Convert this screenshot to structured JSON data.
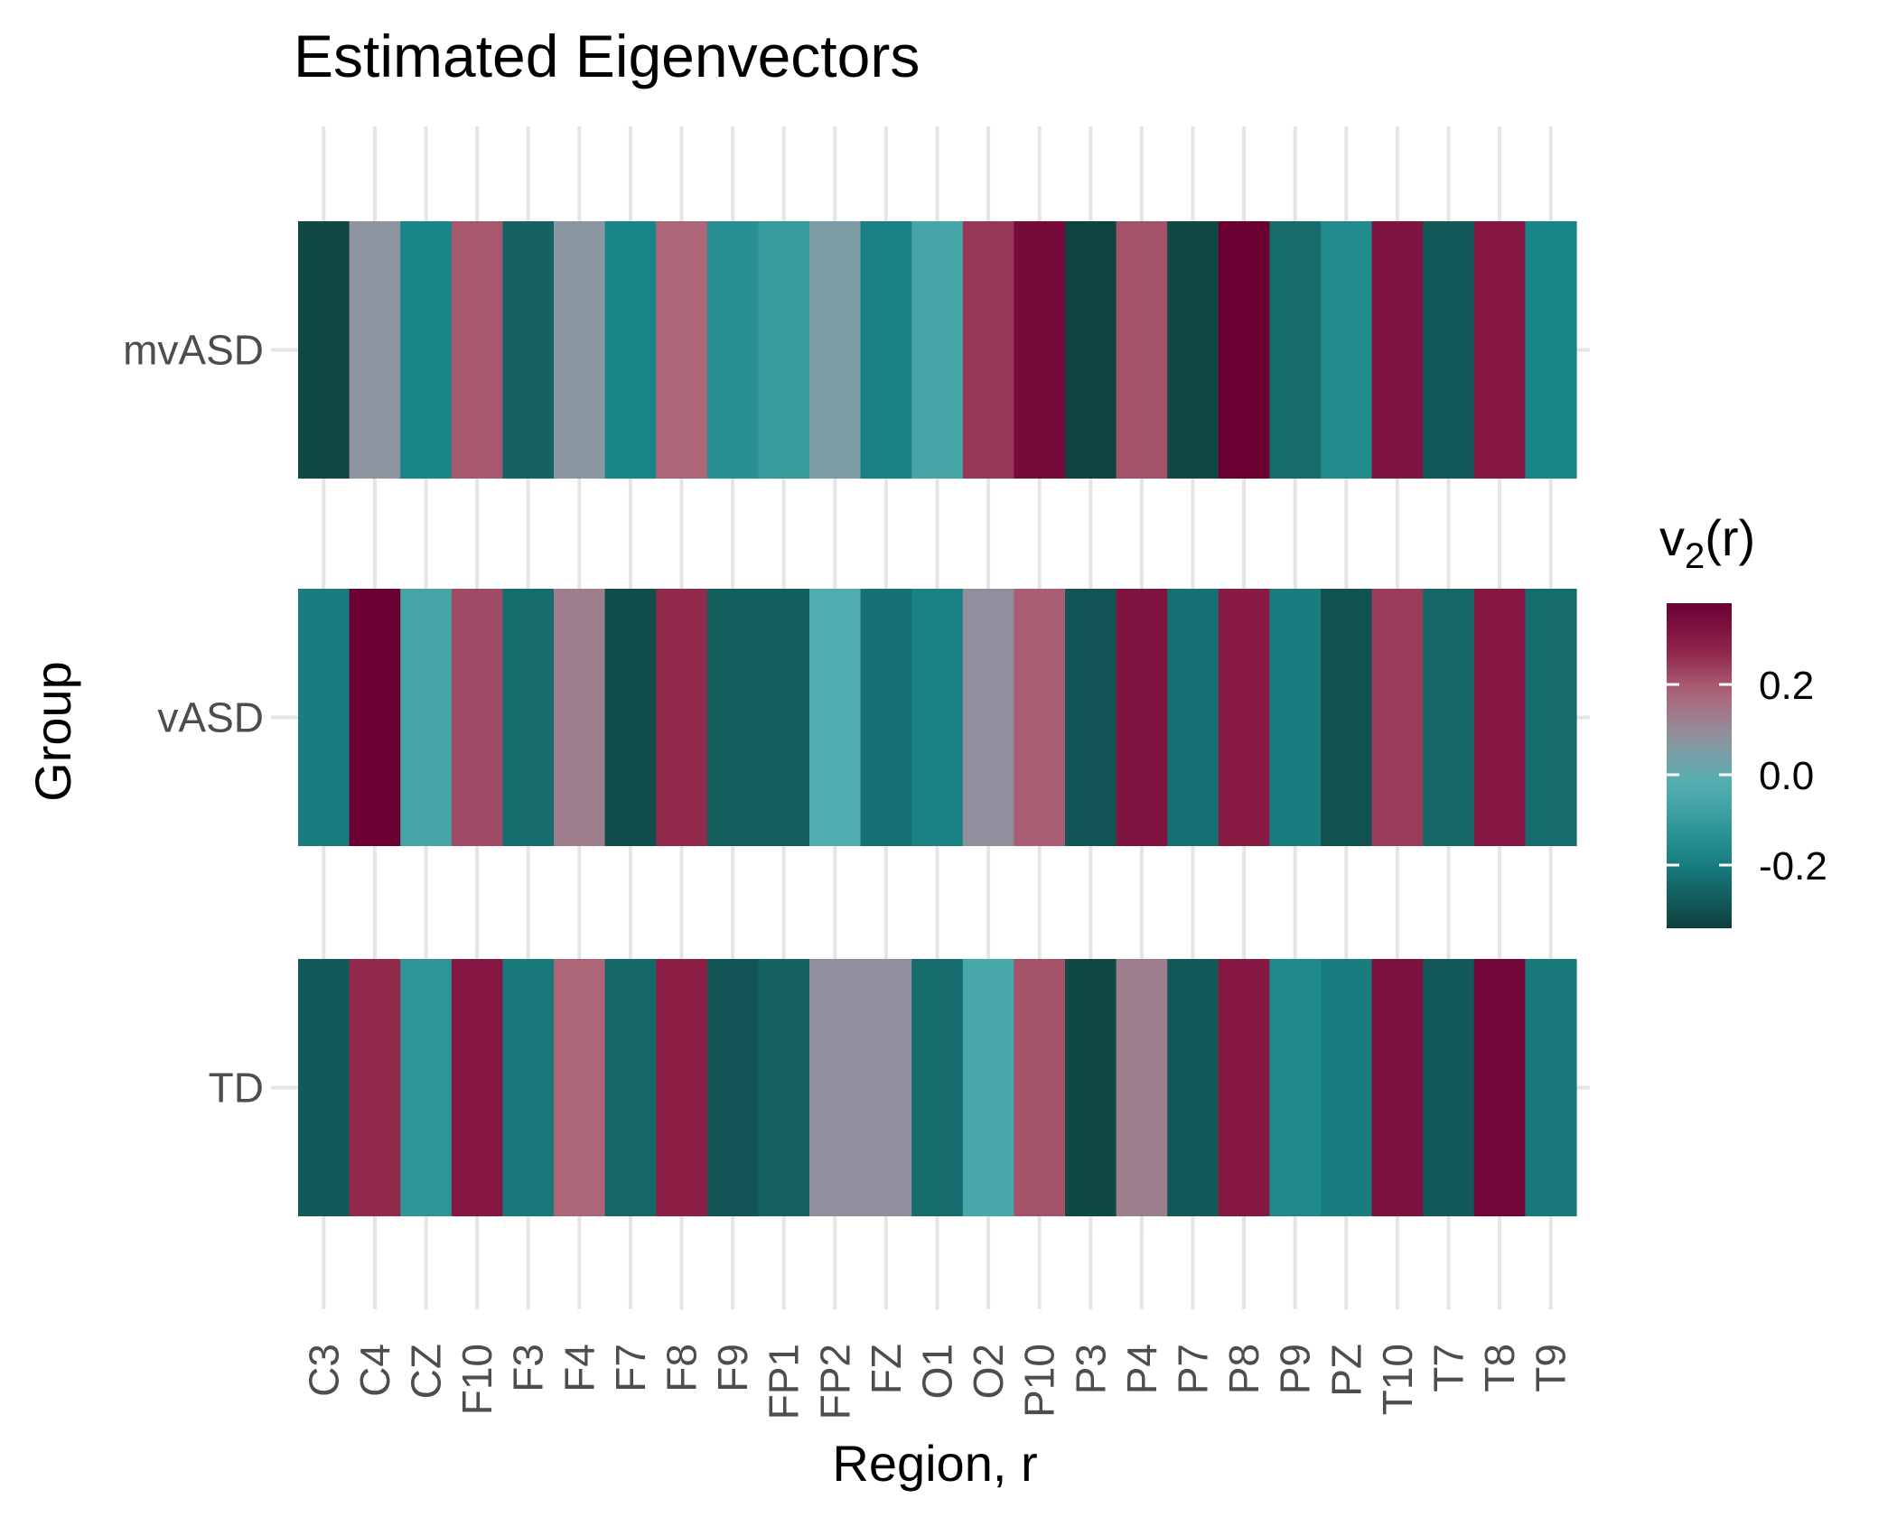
{
  "chart_data": {
    "type": "heatmap",
    "title": "Estimated Eigenvectors",
    "xlabel": "Region, r",
    "ylabel": "Group",
    "x_categories": [
      "C3",
      "C4",
      "CZ",
      "F10",
      "F3",
      "F4",
      "F7",
      "F8",
      "F9",
      "FP1",
      "FP2",
      "FZ",
      "O1",
      "O2",
      "P10",
      "P3",
      "P4",
      "P7",
      "P8",
      "P9",
      "PZ",
      "T10",
      "T7",
      "T8",
      "T9"
    ],
    "y_categories": [
      "mvASD",
      "vASD",
      "TD"
    ],
    "values": {
      "mvASD": [
        -0.32,
        0.08,
        -0.18,
        0.2,
        -0.26,
        0.07,
        -0.18,
        0.18,
        -0.14,
        -0.1,
        0.05,
        -0.19,
        -0.06,
        0.25,
        0.35,
        -0.33,
        0.21,
        -0.32,
        0.38,
        -0.24,
        -0.16,
        0.32,
        -0.28,
        0.31,
        -0.18
      ],
      "vASD": [
        -0.2,
        0.38,
        -0.06,
        0.22,
        -0.24,
        0.13,
        -0.31,
        0.27,
        -0.27,
        -0.27,
        -0.03,
        -0.23,
        -0.19,
        0.09,
        0.19,
        -0.29,
        0.32,
        -0.23,
        0.3,
        -0.2,
        -0.3,
        0.24,
        -0.25,
        0.31,
        -0.24
      ],
      "TD": [
        -0.28,
        0.27,
        -0.12,
        0.31,
        -0.21,
        0.18,
        -0.25,
        0.29,
        -0.29,
        -0.26,
        0.09,
        0.09,
        -0.24,
        -0.05,
        0.21,
        -0.32,
        0.13,
        -0.28,
        0.31,
        -0.17,
        -0.2,
        0.33,
        -0.28,
        0.36,
        -0.21
      ]
    },
    "legend": {
      "title_base": "v",
      "title_sub": "2",
      "title_suffix": "(r)",
      "ticks": [
        0.2,
        0.0,
        -0.2
      ],
      "tick_labels": [
        "0.2",
        "0.0",
        "-0.2"
      ],
      "range": [
        -0.34,
        0.38
      ],
      "placement": "right"
    },
    "color_scale": {
      "stops": [
        {
          "value": -0.34,
          "color": "#0e3f3c"
        },
        {
          "value": -0.18,
          "color": "#1a8588"
        },
        {
          "value": -0.02,
          "color": "#54b0b0"
        },
        {
          "value": 0.08,
          "color": "#8e94a0"
        },
        {
          "value": 0.18,
          "color": "#ad6578"
        },
        {
          "value": 0.28,
          "color": "#8e2248"
        },
        {
          "value": 0.38,
          "color": "#6b0033"
        }
      ]
    },
    "grid": true
  }
}
